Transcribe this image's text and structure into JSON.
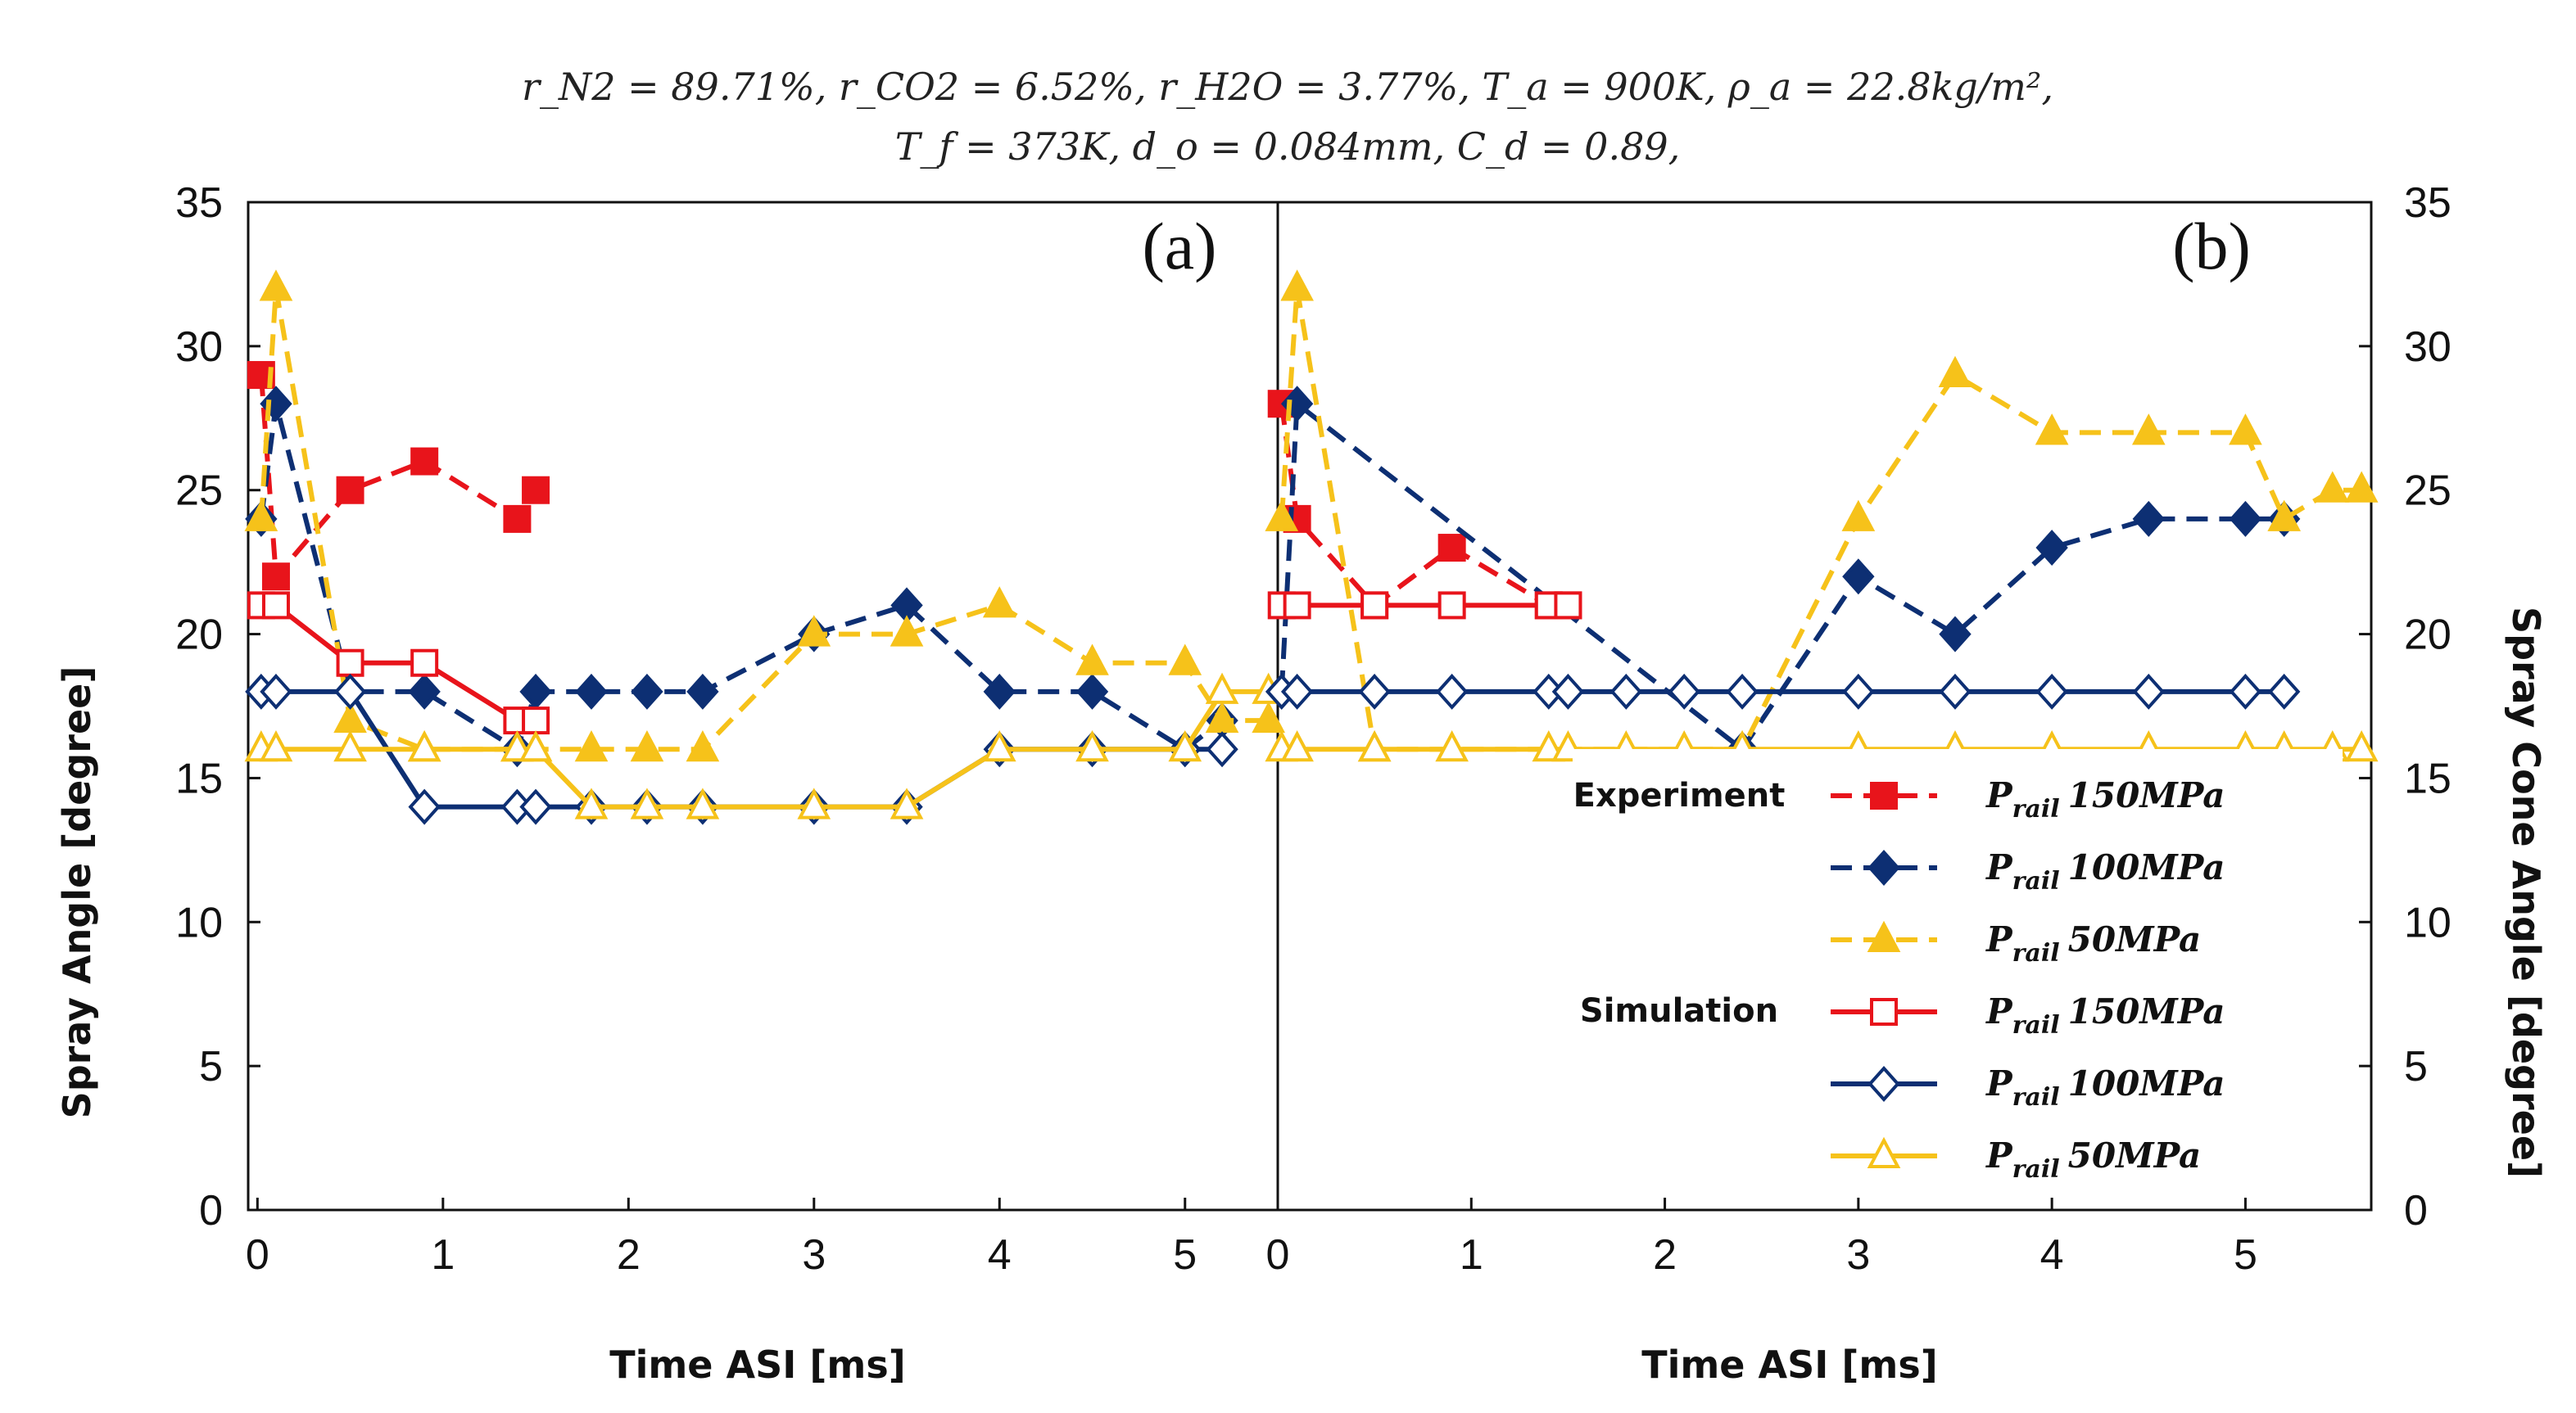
{
  "chart_data": {
    "type": "line",
    "formula_line1": "r_N2 = 89.71%, r_CO2 = 6.52%, r_H2O = 3.77%, T_a = 900K, ρ_a = 22.8kg/m², ",
    "formula_line2": "T_f = 373K, d_o = 0.084mm, C_d = 0.89,",
    "ylabel_left": "Spray Angle [degree]",
    "ylabel_right": "Spray Cone Angle [degree]",
    "ylim": [
      0,
      35
    ],
    "yticks": [
      "0",
      "5",
      "10",
      "15",
      "20",
      "25",
      "30",
      "35"
    ],
    "legend_categories": {
      "experiment": "Experiment",
      "simulation": "Simulation"
    },
    "colors": {
      "red": "#e8141b",
      "blue": "#0d2f73",
      "yellow": "#f6c21a"
    },
    "panels": [
      {
        "label": "(a)",
        "xlabel": "Time ASI [ms]",
        "xlim": [
          -0.05,
          5.5
        ],
        "xticks": [
          "0",
          "1",
          "2",
          "3",
          "4",
          "5"
        ],
        "series": [
          {
            "name": "Experiment P_rail 150MPa",
            "group": "exp",
            "color": "red",
            "marker": "square",
            "filled": true,
            "x": [
              0.02,
              0.1,
              0.5,
              0.9,
              1.4,
              1.5
            ],
            "y": [
              29,
              22,
              25,
              26,
              24,
              25
            ]
          },
          {
            "name": "Experiment P_rail 100MPa",
            "group": "exp",
            "color": "blue",
            "marker": "diamond",
            "filled": true,
            "x": [
              0.02,
              0.1,
              0.5,
              0.9,
              1.4,
              1.5,
              1.8,
              2.1,
              2.4,
              3.0,
              3.5,
              4.0,
              4.5,
              5.0,
              5.2
            ],
            "y": [
              24,
              28,
              18,
              18,
              16,
              18,
              18,
              18,
              18,
              20,
              21,
              18,
              18,
              16,
              17
            ]
          },
          {
            "name": "Experiment P_rail 50MPa",
            "group": "exp",
            "color": "yellow",
            "marker": "triangle",
            "filled": true,
            "x": [
              0.02,
              0.1,
              0.5,
              0.9,
              1.4,
              1.5,
              1.8,
              2.1,
              2.4,
              3.0,
              3.5,
              4.0,
              4.5,
              5.0,
              5.2,
              5.45
            ],
            "y": [
              24,
              32,
              17,
              16,
              16,
              16,
              16,
              16,
              16,
              20,
              20,
              21,
              19,
              19,
              17,
              17
            ]
          },
          {
            "name": "Simulation P_rail 150MPa",
            "group": "sim",
            "color": "red",
            "marker": "square",
            "filled": false,
            "x": [
              0.02,
              0.1,
              0.5,
              0.9,
              1.4,
              1.5
            ],
            "y": [
              21,
              21,
              19,
              19,
              17,
              17
            ]
          },
          {
            "name": "Simulation P_rail 100MPa",
            "group": "sim",
            "color": "blue",
            "marker": "diamond",
            "filled": false,
            "x": [
              0.02,
              0.1,
              0.5,
              0.9,
              1.4,
              1.5,
              1.8,
              2.1,
              2.4,
              3.0,
              3.5,
              4.0,
              4.5,
              5.0,
              5.2
            ],
            "y": [
              18,
              18,
              18,
              14,
              14,
              14,
              14,
              14,
              14,
              14,
              14,
              16,
              16,
              16,
              16
            ]
          },
          {
            "name": "Simulation P_rail 50MPa",
            "group": "sim",
            "color": "yellow",
            "marker": "triangle",
            "filled": false,
            "x": [
              0.02,
              0.1,
              0.5,
              0.9,
              1.4,
              1.5,
              1.8,
              2.1,
              2.4,
              3.0,
              3.5,
              4.0,
              4.5,
              5.0,
              5.2,
              5.45
            ],
            "y": [
              16,
              16,
              16,
              16,
              16,
              16,
              14,
              14,
              14,
              14,
              14,
              16,
              16,
              16,
              18,
              18
            ]
          }
        ]
      },
      {
        "label": "(b)",
        "xlabel": "Time ASI [ms]",
        "xlim": [
          0,
          5.65
        ],
        "xticks": [
          "0",
          "1",
          "2",
          "3",
          "4",
          "5"
        ],
        "series": [
          {
            "name": "Experiment P_rail 150MPa",
            "group": "exp",
            "color": "red",
            "marker": "square",
            "filled": true,
            "x": [
              0.02,
              0.1,
              0.5,
              0.9,
              1.4,
              1.5
            ],
            "y": [
              28,
              24,
              21,
              23,
              21,
              21
            ]
          },
          {
            "name": "Experiment P_rail 100MPa",
            "group": "exp",
            "color": "blue",
            "marker": "diamond",
            "filled": true,
            "x": [
              0.02,
              0.1,
              2.4,
              3.0,
              3.5,
              4.0,
              4.5,
              5.0,
              5.2
            ],
            "y": [
              18,
              28,
              16,
              22,
              20,
              23,
              24,
              24,
              24
            ]
          },
          {
            "name": "Experiment P_rail 50MPa",
            "group": "exp",
            "color": "yellow",
            "marker": "triangle",
            "filled": true,
            "x": [
              0.02,
              0.1,
              0.5,
              2.4,
              3.0,
              3.5,
              4.0,
              4.5,
              5.0,
              5.2,
              5.45,
              5.6
            ],
            "y": [
              24,
              32,
              16,
              16,
              24,
              29,
              27,
              27,
              27,
              24,
              25,
              25
            ]
          },
          {
            "name": "Simulation P_rail 150MPa",
            "group": "sim",
            "color": "red",
            "marker": "square",
            "filled": false,
            "x": [
              0.02,
              0.1,
              0.5,
              0.9,
              1.4,
              1.5
            ],
            "y": [
              21,
              21,
              21,
              21,
              21,
              21
            ]
          },
          {
            "name": "Simulation P_rail 100MPa",
            "group": "sim",
            "color": "blue",
            "marker": "diamond",
            "filled": false,
            "x": [
              0.02,
              0.1,
              0.5,
              0.9,
              1.4,
              1.5,
              1.8,
              2.1,
              2.4,
              3.0,
              3.5,
              4.0,
              4.5,
              5.0,
              5.2
            ],
            "y": [
              18,
              18,
              18,
              18,
              18,
              18,
              18,
              18,
              18,
              18,
              18,
              18,
              18,
              18,
              18
            ]
          },
          {
            "name": "Simulation P_rail 50MPa",
            "group": "sim",
            "color": "yellow",
            "marker": "triangle",
            "filled": false,
            "x": [
              0.02,
              0.1,
              0.5,
              0.9,
              1.4,
              1.5,
              1.8,
              2.1,
              2.4,
              3.0,
              3.5,
              4.0,
              4.5,
              5.0,
              5.2,
              5.45,
              5.6
            ],
            "y": [
              16,
              16,
              16,
              16,
              16,
              16,
              16,
              16,
              16,
              16,
              16,
              16,
              16,
              16,
              16,
              16,
              16
            ]
          }
        ]
      }
    ],
    "legend": [
      {
        "symbol": "P",
        "sub": "rail",
        "value": "150MPa",
        "series": 0
      },
      {
        "symbol": "P",
        "sub": "rail",
        "value": "100MPa",
        "series": 1
      },
      {
        "symbol": "P",
        "sub": "rail",
        "value": "50MPa",
        "series": 2
      },
      {
        "symbol": "P",
        "sub": "rail",
        "value": "150MPa",
        "series": 3
      },
      {
        "symbol": "P",
        "sub": "rail",
        "value": "100MPa",
        "series": 4
      },
      {
        "symbol": "P",
        "sub": "rail",
        "value": "50MPa",
        "series": 5
      }
    ]
  }
}
